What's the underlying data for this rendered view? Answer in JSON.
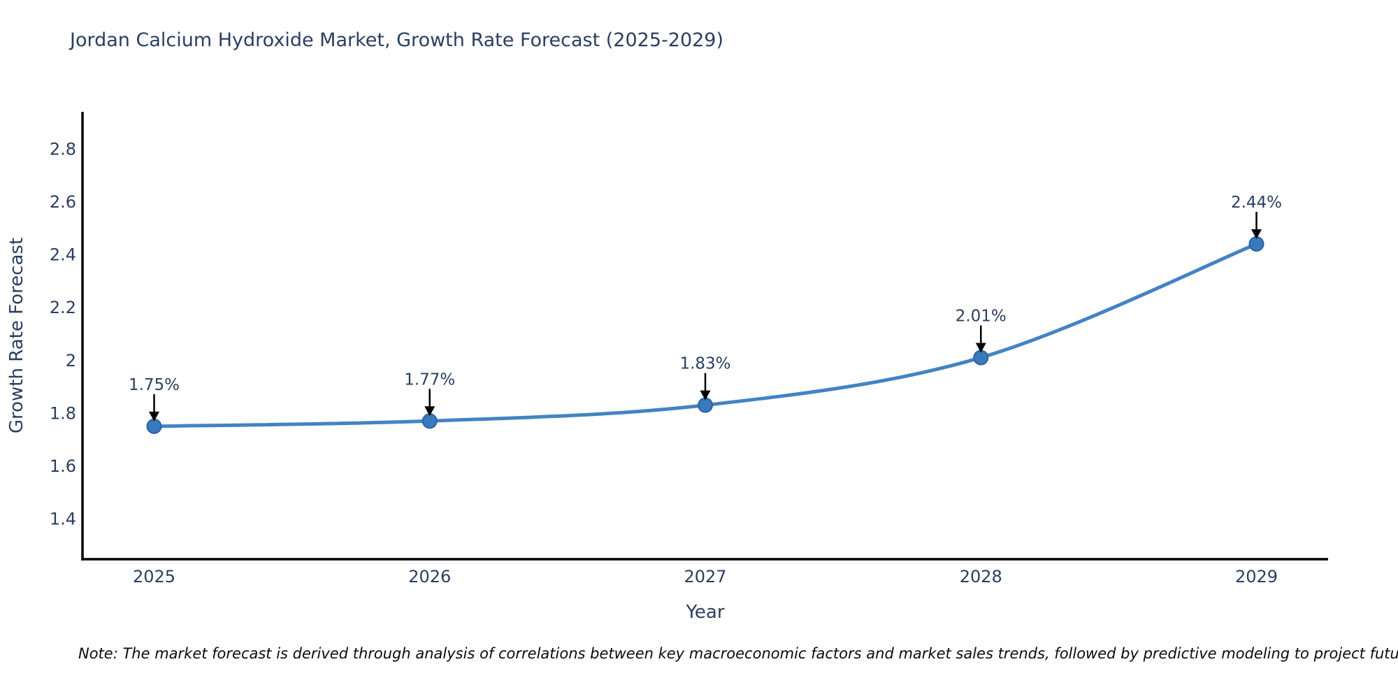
{
  "chart_data": {
    "type": "line",
    "title": "Jordan Calcium Hydroxide Market, Growth Rate Forecast (2025-2029)",
    "xlabel": "Year",
    "ylabel": "Growth Rate Forecast",
    "x": [
      2025,
      2026,
      2027,
      2028,
      2029
    ],
    "values": [
      1.75,
      1.77,
      1.83,
      2.01,
      2.44
    ],
    "point_labels": [
      "1.75%",
      "1.77%",
      "1.83%",
      "2.01%",
      "2.44%"
    ],
    "series": [
      {
        "name": "Growth Rate Forecast",
        "values": [
          1.75,
          1.77,
          1.83,
          2.01,
          2.44
        ]
      }
    ],
    "xtick_labels": [
      "2025",
      "2026",
      "2027",
      "2028",
      "2029"
    ],
    "yticks": [
      1.4,
      1.6,
      1.8,
      2,
      2.2,
      2.4,
      2.6,
      2.8
    ],
    "ytick_labels": [
      "1.4",
      "1.6",
      "1.8",
      "2",
      "2.2",
      "2.4",
      "2.6",
      "2.8"
    ],
    "xlim": [
      2024.74,
      2029.26
    ],
    "ylim": [
      1.247,
      2.94
    ],
    "grid": false,
    "legend": false,
    "line_shape": "spline",
    "annotations_style": "down-arrow",
    "colors": {
      "line": "#4383c4",
      "marker": "#3a7abc",
      "marker_edge": "#2a62a0",
      "annotation_arrow": "#000000",
      "text": "#2a3f5f",
      "axis": "#000000",
      "background": "#ffffff"
    }
  },
  "note": "Note: The market forecast is derived through analysis of correlations between key macroeconomic factors and market sales trends, followed by predictive modeling to project future sales"
}
